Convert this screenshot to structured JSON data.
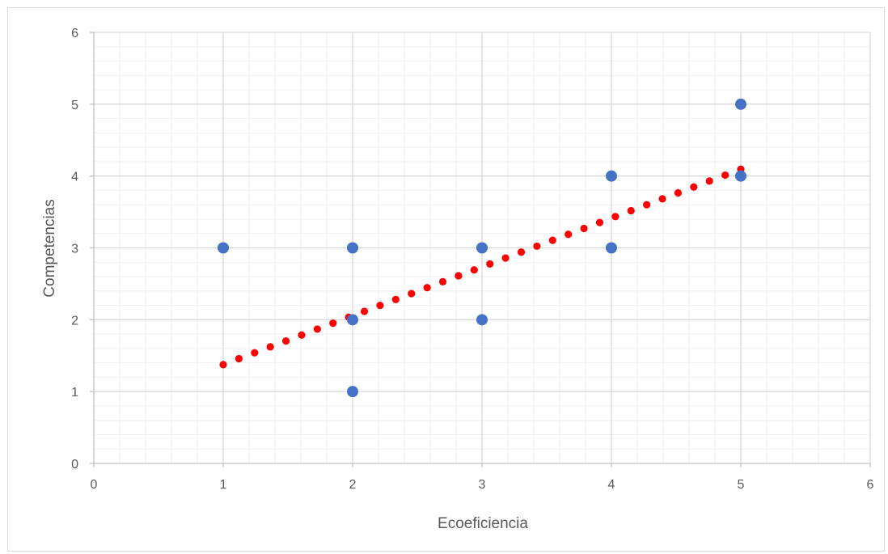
{
  "chart_data": {
    "type": "scatter",
    "title": "",
    "xlabel": "Ecoeficiencia",
    "ylabel": "Competencias",
    "xlim": [
      0,
      6
    ],
    "ylim": [
      0,
      6
    ],
    "x_ticks": [
      "0",
      "1",
      "2",
      "3",
      "4",
      "5",
      "6"
    ],
    "y_ticks": [
      "0",
      "1",
      "2",
      "3",
      "4",
      "5",
      "6"
    ],
    "grid": {
      "major": true,
      "minor": true
    },
    "legend": "none",
    "series": [
      {
        "color": "#4472c4",
        "points": [
          {
            "x": 1,
            "y": 3
          },
          {
            "x": 2,
            "y": 1
          },
          {
            "x": 2,
            "y": 2
          },
          {
            "x": 2,
            "y": 3
          },
          {
            "x": 3,
            "y": 2
          },
          {
            "x": 3,
            "y": 3
          },
          {
            "x": 4,
            "y": 3
          },
          {
            "x": 4,
            "y": 4
          },
          {
            "x": 5,
            "y": 4
          },
          {
            "x": 5,
            "y": 5
          }
        ]
      }
    ],
    "trendline": {
      "type": "linear",
      "style": "round-dot",
      "color": "#ff0000",
      "x_range": [
        1,
        5
      ],
      "intercept": 0.695,
      "slope": 0.68
    }
  }
}
